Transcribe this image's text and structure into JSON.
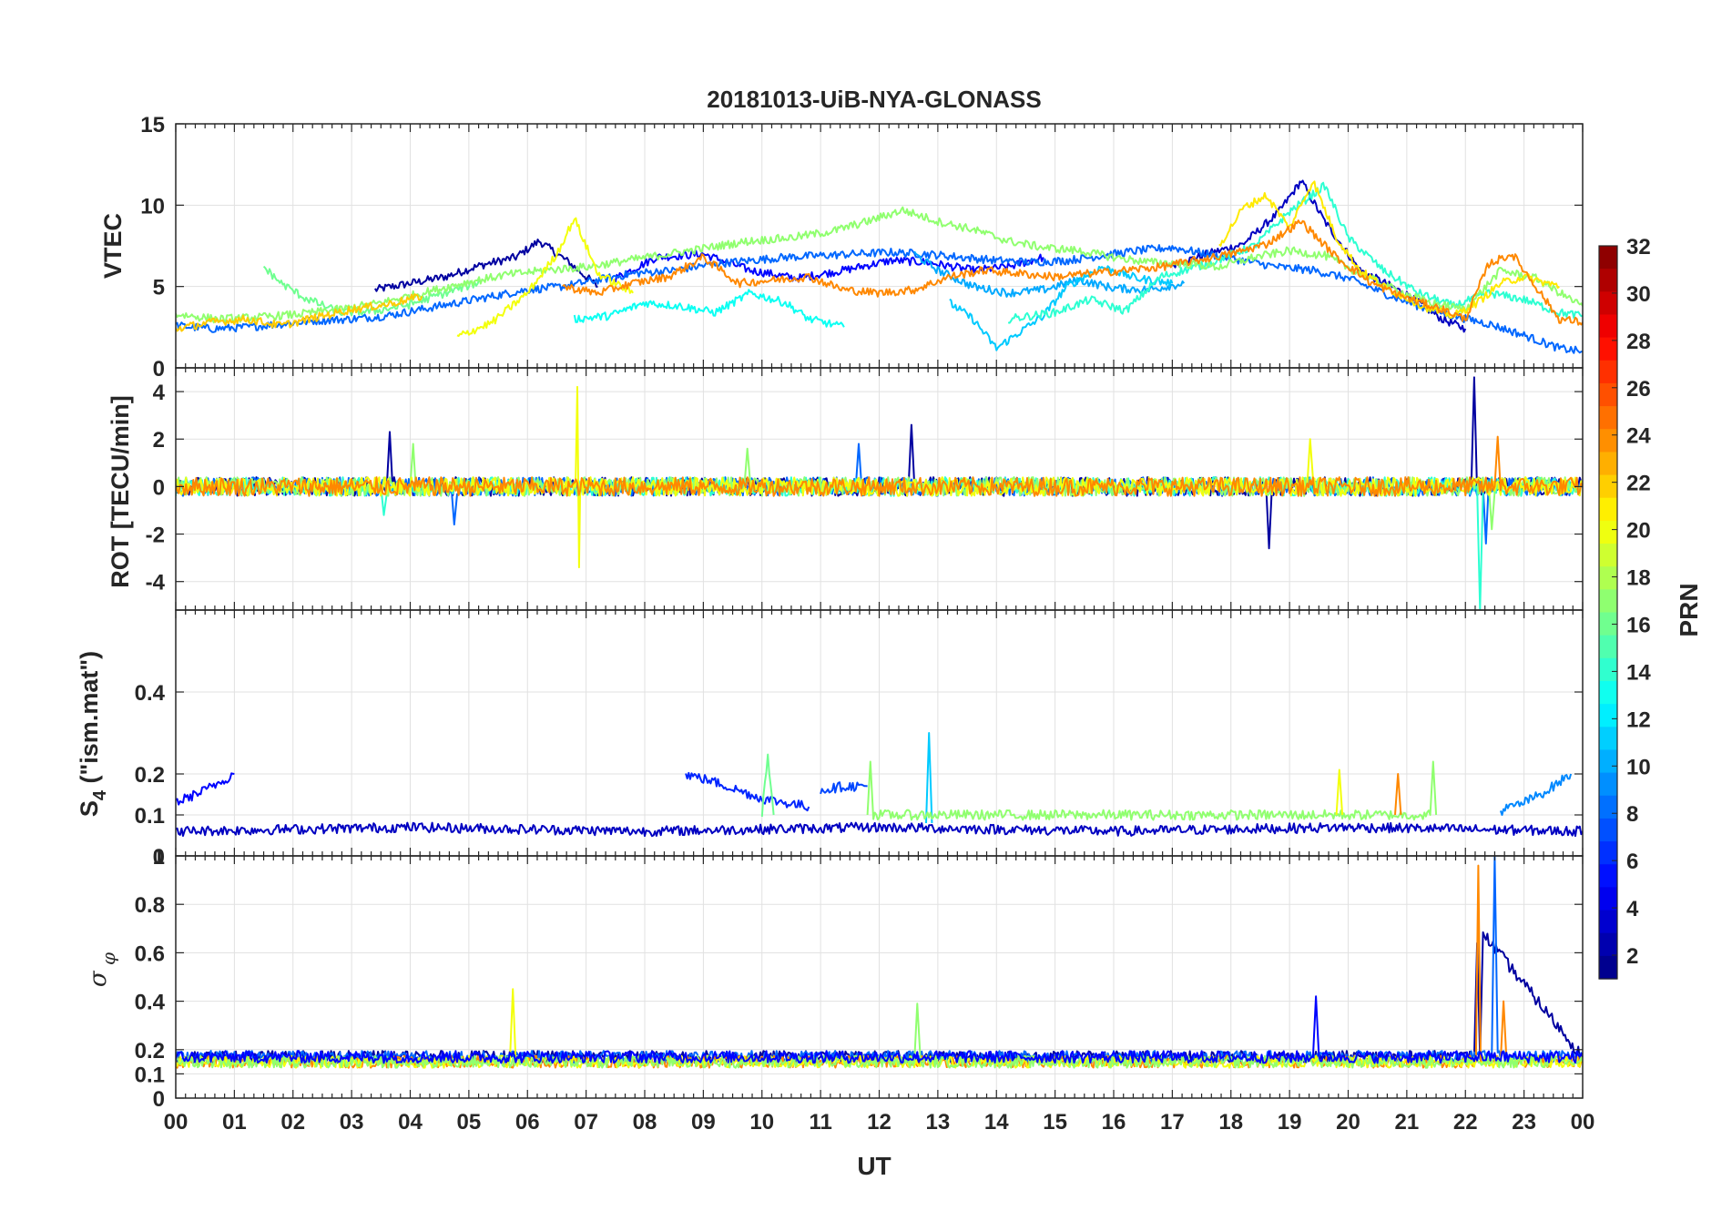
{
  "chart_data": [
    {
      "type": "line",
      "title": "20181013-UiB-NYA-GLONASS",
      "panel": "VTEC",
      "ylabel": "VTEC",
      "xlabel": "UT",
      "xlim": [
        0,
        24
      ],
      "ylim": [
        0,
        15
      ],
      "yticks": [
        0,
        5,
        10,
        15
      ],
      "grid": true,
      "series": [
        {
          "name": "PRN 2",
          "prn": 2,
          "x": [
            3.4,
            4.0,
            4.6,
            5.2,
            5.8,
            6.2,
            6.7,
            7.2
          ],
          "y": [
            4.8,
            5.2,
            5.6,
            6.3,
            6.8,
            7.8,
            6.5,
            5.0
          ]
        },
        {
          "name": "PRN 3",
          "prn": 3,
          "x": [
            17.0,
            17.6,
            18.2,
            18.8,
            19.2,
            19.6,
            20.2,
            21.0,
            21.6,
            22.0
          ],
          "y": [
            6.3,
            7.0,
            7.6,
            9.5,
            11.5,
            9.0,
            6.0,
            4.5,
            3.0,
            2.4
          ]
        },
        {
          "name": "PRN 5",
          "prn": 5,
          "x": [
            7.5,
            8.2,
            9.0,
            9.8,
            10.6,
            11.4,
            12.2,
            12.8,
            13.6,
            14.2,
            14.8
          ],
          "y": [
            5.5,
            6.8,
            7.0,
            6.0,
            5.5,
            6.0,
            6.6,
            6.5,
            6.0,
            6.2,
            6.8
          ]
        },
        {
          "name": "PRN 8",
          "prn": 8,
          "x": [
            0.0,
            0.6,
            1.2,
            1.8,
            2.4,
            3.0,
            3.6,
            4.2,
            4.8,
            5.4,
            6.0,
            6.6,
            7.2,
            7.8,
            8.5,
            9.2,
            9.8,
            10.4,
            11.0,
            11.6,
            12.2,
            12.8,
            13.4,
            14.0,
            14.6,
            15.2,
            15.8,
            16.4,
            17.0,
            17.6,
            18.2,
            18.8,
            19.4,
            20.0,
            20.6,
            21.2,
            21.8,
            22.4,
            23.0,
            23.6,
            24.0
          ],
          "y": [
            2.6,
            2.4,
            2.5,
            2.7,
            2.9,
            3.0,
            3.2,
            3.6,
            4.0,
            4.4,
            4.8,
            5.0,
            5.4,
            5.8,
            6.0,
            6.4,
            6.6,
            6.8,
            6.9,
            7.0,
            7.1,
            7.0,
            6.8,
            6.6,
            6.5,
            6.6,
            6.9,
            7.2,
            7.4,
            7.0,
            6.6,
            6.2,
            6.0,
            5.5,
            4.6,
            3.8,
            3.2,
            2.7,
            2.0,
            1.2,
            1.0
          ]
        },
        {
          "name": "PRN 10",
          "prn": 10,
          "x": [
            12.6,
            13.0,
            13.6,
            14.2,
            14.8,
            15.4,
            16.0,
            16.6,
            17.2
          ],
          "y": [
            7.0,
            6.0,
            5.0,
            4.6,
            4.8,
            5.4,
            4.9,
            4.8,
            5.2
          ]
        },
        {
          "name": "PRN 11",
          "prn": 11,
          "x": [
            13.2,
            13.6,
            14.0,
            14.4,
            14.8,
            15.2,
            15.8,
            16.4,
            17.0
          ],
          "y": [
            4.0,
            3.0,
            1.2,
            2.2,
            3.2,
            5.0,
            6.2,
            5.5,
            5.2
          ]
        },
        {
          "name": "PRN 13",
          "prn": 13,
          "x": [
            6.8,
            7.4,
            8.0,
            8.6,
            9.2,
            9.8,
            10.4,
            10.8,
            11.4
          ],
          "y": [
            3.0,
            3.2,
            4.0,
            3.8,
            3.4,
            4.6,
            4.0,
            3.0,
            2.5
          ]
        },
        {
          "name": "PRN 14",
          "prn": 14,
          "x": [
            14.2,
            15.0,
            15.6,
            16.2,
            16.8,
            17.6,
            18.4,
            19.0,
            19.6,
            20.0,
            20.6,
            21.2,
            21.8,
            22.4,
            23.0,
            23.6,
            24.0
          ],
          "y": [
            3.0,
            3.4,
            4.2,
            3.5,
            5.6,
            6.4,
            7.5,
            9.6,
            11.2,
            8.0,
            6.0,
            4.6,
            3.8,
            4.6,
            4.2,
            3.4,
            3.2
          ]
        },
        {
          "name": "PRN 16",
          "prn": 16,
          "x": [
            1.5,
            1.8,
            2.2,
            2.8,
            3.4,
            4.0,
            4.6,
            5.2
          ],
          "y": [
            6.2,
            5.2,
            4.3,
            3.4,
            3.5,
            3.9,
            4.6,
            5.3
          ]
        },
        {
          "name": "PRN 17",
          "prn": 17,
          "x": [
            0.0,
            0.7,
            1.4,
            2.1,
            2.8,
            3.5,
            4.2,
            4.9,
            5.6,
            6.3,
            7.0,
            7.7,
            8.4,
            9.1,
            9.8,
            10.5,
            11.2,
            11.8,
            12.4,
            13.0,
            13.6,
            14.2,
            14.8,
            15.4,
            16.0,
            16.6,
            17.2,
            17.8,
            18.4,
            19.0,
            19.6,
            20.2,
            20.8,
            21.4,
            22.0,
            22.6,
            23.2,
            23.8,
            24.0
          ],
          "y": [
            3.3,
            3.0,
            3.1,
            3.3,
            3.6,
            4.0,
            4.6,
            5.2,
            5.7,
            6.0,
            6.2,
            6.6,
            7.0,
            7.4,
            7.8,
            8.0,
            8.4,
            9.0,
            9.7,
            9.0,
            8.5,
            7.8,
            7.4,
            7.2,
            6.8,
            6.5,
            6.4,
            6.2,
            6.8,
            7.2,
            6.9,
            5.8,
            4.8,
            4.0,
            3.6,
            6.0,
            5.5,
            4.2,
            3.8
          ]
        },
        {
          "name": "PRN 20",
          "prn": 20,
          "x": [
            4.8,
            5.4,
            6.0,
            6.5,
            6.8,
            7.2,
            7.8
          ],
          "y": [
            1.9,
            2.8,
            4.6,
            7.0,
            9.2,
            5.8,
            4.6
          ]
        },
        {
          "name": "PRN 21",
          "prn": 21,
          "x": [
            17.8,
            18.2,
            18.6,
            19.0,
            19.4,
            19.8,
            20.2,
            20.6,
            21.0,
            21.4,
            21.8,
            22.2,
            22.6,
            23.0,
            23.6
          ],
          "y": [
            7.5,
            9.8,
            10.6,
            8.6,
            11.5,
            8.0,
            6.0,
            5.0,
            4.3,
            3.6,
            3.2,
            4.0,
            5.2,
            5.6,
            5.0
          ]
        },
        {
          "name": "PRN 22",
          "prn": 22,
          "x": [
            0.0,
            0.6,
            1.2,
            1.8,
            2.4,
            3.0,
            3.6,
            4.2
          ],
          "y": [
            2.4,
            2.8,
            3.0,
            2.6,
            3.1,
            3.6,
            3.9,
            4.4
          ]
        },
        {
          "name": "PRN 24",
          "prn": 24,
          "x": [
            6.6,
            7.2,
            7.8,
            8.4,
            9.0,
            9.6,
            10.2,
            10.8,
            11.4,
            12.0,
            12.6,
            13.2,
            13.8,
            14.4,
            15.0,
            15.6,
            16.2,
            16.8,
            17.4,
            18.0,
            18.6,
            19.2,
            19.8,
            20.4,
            21.0,
            21.6,
            22.0,
            22.4,
            22.8,
            23.2,
            23.6,
            24.0
          ],
          "y": [
            5.0,
            4.6,
            5.2,
            5.6,
            6.8,
            5.2,
            5.4,
            5.6,
            4.8,
            4.6,
            4.8,
            5.6,
            6.0,
            5.8,
            5.6,
            5.8,
            6.0,
            6.2,
            6.6,
            7.0,
            7.6,
            9.0,
            6.8,
            5.2,
            4.3,
            3.6,
            3.0,
            6.4,
            7.0,
            5.0,
            3.0,
            2.8
          ]
        }
      ]
    },
    {
      "type": "line",
      "panel": "ROT",
      "ylabel": "ROT [TECU/min]",
      "xlim": [
        0,
        24
      ],
      "ylim": [
        -5.2,
        5
      ],
      "yticks": [
        -4,
        -2,
        0,
        2,
        4
      ],
      "grid": true,
      "series": [
        {
          "name": "PRN 2",
          "prn": 2,
          "x": [
            0,
            3.6,
            3.65,
            3.7,
            6.0,
            7.0,
            12.5,
            12.55,
            12.6,
            18.6,
            18.65,
            18.7,
            22.1,
            22.15,
            22.2,
            24
          ],
          "y": [
            0,
            0,
            2.3,
            0,
            0,
            0,
            0,
            2.6,
            0,
            0,
            -2.6,
            0,
            0,
            4.6,
            0,
            0
          ]
        },
        {
          "name": "PRN 8",
          "prn": 8,
          "x": [
            0,
            4.7,
            4.75,
            4.8,
            11.6,
            11.65,
            11.7,
            22.3,
            22.35,
            22.4,
            24
          ],
          "y": [
            0,
            0,
            -1.6,
            0,
            0,
            1.8,
            0,
            0,
            -2.4,
            0,
            0
          ]
        },
        {
          "name": "PRN 14",
          "prn": 14,
          "x": [
            0,
            3.5,
            3.55,
            3.6,
            22.2,
            22.25,
            22.3,
            24
          ],
          "y": [
            0,
            0,
            -1.2,
            0,
            0,
            -5.2,
            0,
            0
          ]
        },
        {
          "name": "PRN 17",
          "prn": 17,
          "x": [
            0,
            4.0,
            4.05,
            4.1,
            9.7,
            9.75,
            9.8,
            22.4,
            22.45,
            22.5,
            24
          ],
          "y": [
            0,
            0,
            1.8,
            0,
            0,
            1.6,
            0,
            0,
            -1.8,
            0,
            0
          ]
        },
        {
          "name": "PRN 20",
          "prn": 20,
          "x": [
            0,
            6.82,
            6.85,
            6.88,
            6.9,
            19.3,
            19.35,
            19.4,
            24
          ],
          "y": [
            0,
            0,
            4.2,
            -3.4,
            0,
            0,
            2.0,
            0,
            0
          ]
        },
        {
          "name": "PRN 24",
          "prn": 24,
          "x": [
            0,
            22.5,
            22.55,
            22.6,
            24
          ],
          "y": [
            0,
            0,
            2.1,
            0,
            0
          ]
        }
      ]
    },
    {
      "type": "line",
      "panel": "S4",
      "ylabel": "S4 (\"ism.mat\")",
      "xlim": [
        0,
        24
      ],
      "ylim": [
        0,
        0.6
      ],
      "yticks": [
        0,
        0.1,
        0.2,
        0.4
      ],
      "grid": true,
      "series": [
        {
          "name": "PRN 5",
          "prn": 5,
          "x": [
            0,
            0.5,
            1.0
          ],
          "y": [
            0.13,
            0.16,
            0.2
          ]
        },
        {
          "name": "PRN 6",
          "prn": 6,
          "x": [
            8.7,
            9.2,
            9.6,
            10.0,
            10.4,
            10.8
          ],
          "y": [
            0.2,
            0.18,
            0.16,
            0.14,
            0.13,
            0.12
          ]
        },
        {
          "name": "PRN 7",
          "prn": 7,
          "x": [
            11.0,
            11.4,
            11.8
          ],
          "y": [
            0.16,
            0.17,
            0.17
          ]
        },
        {
          "name": "PRN 9",
          "prn": 9,
          "x": [
            22.6,
            23.0,
            23.4,
            23.8
          ],
          "y": [
            0.11,
            0.13,
            0.16,
            0.2
          ]
        },
        {
          "name": "PRN 11",
          "prn": 11,
          "x": [
            12.8,
            12.85,
            12.9
          ],
          "y": [
            0.08,
            0.3,
            0.08
          ]
        },
        {
          "name": "PRN 16",
          "prn": 16,
          "x": [
            10.0,
            10.1,
            10.2
          ],
          "y": [
            0.1,
            0.25,
            0.1
          ]
        },
        {
          "name": "PRN 17",
          "prn": 17,
          "x": [
            11.8,
            11.85,
            11.9,
            21.4,
            21.45,
            21.5
          ],
          "y": [
            0.1,
            0.23,
            0.1,
            0.1,
            0.23,
            0.1
          ]
        },
        {
          "name": "PRN 20",
          "prn": 20,
          "x": [
            19.8,
            19.85,
            19.9
          ],
          "y": [
            0.1,
            0.21,
            0.1
          ]
        },
        {
          "name": "PRN 24",
          "prn": 24,
          "x": [
            20.8,
            20.85,
            20.9
          ],
          "y": [
            0.1,
            0.2,
            0.1
          ]
        },
        {
          "name": "PRN 3",
          "prn": 3,
          "x": [
            0,
            4,
            8,
            12,
            16,
            20,
            24
          ],
          "y": [
            0.06,
            0.07,
            0.06,
            0.07,
            0.06,
            0.07,
            0.06
          ]
        }
      ]
    },
    {
      "type": "line",
      "panel": "sigma_phi",
      "ylabel": "σφ",
      "xlim": [
        0,
        24
      ],
      "ylim": [
        0,
        1
      ],
      "yticks": [
        0,
        0.1,
        0.2,
        0.4,
        0.6,
        0.8,
        1
      ],
      "xticks": [
        "00",
        "01",
        "02",
        "03",
        "04",
        "05",
        "06",
        "07",
        "08",
        "09",
        "10",
        "11",
        "12",
        "13",
        "14",
        "15",
        "16",
        "17",
        "18",
        "19",
        "20",
        "21",
        "22",
        "23",
        "00"
      ],
      "grid": true,
      "series": [
        {
          "name": "PRN 2",
          "prn": 2,
          "x": [
            0,
            22.15,
            22.2,
            22.25,
            22.3,
            24
          ],
          "y": [
            0.17,
            0.17,
            0.64,
            0.17,
            0.68,
            0.17
          ]
        },
        {
          "name": "PRN 8",
          "prn": 8,
          "x": [
            0,
            22.45,
            22.5,
            22.55,
            24
          ],
          "y": [
            0.17,
            0.17,
            1.0,
            0.17,
            0.17
          ]
        },
        {
          "name": "PRN 24",
          "prn": 24,
          "x": [
            0,
            22.18,
            22.22,
            22.26,
            22.6,
            22.65,
            22.7,
            24
          ],
          "y": [
            0.15,
            0.15,
            0.96,
            0.15,
            0.15,
            0.4,
            0.15,
            0.15
          ]
        },
        {
          "name": "PRN 20",
          "prn": 20,
          "x": [
            0,
            5.7,
            5.75,
            5.8,
            24
          ],
          "y": [
            0.15,
            0.15,
            0.45,
            0.15,
            0.15
          ]
        },
        {
          "name": "PRN 17",
          "prn": 17,
          "x": [
            0,
            12.6,
            12.65,
            12.7,
            24
          ],
          "y": [
            0.15,
            0.15,
            0.39,
            0.15,
            0.15
          ]
        },
        {
          "name": "PRN 5",
          "prn": 5,
          "x": [
            0,
            19.4,
            19.45,
            19.5,
            24
          ],
          "y": [
            0.17,
            0.17,
            0.42,
            0.17,
            0.17
          ]
        }
      ]
    }
  ],
  "colorbar": {
    "label": "PRN",
    "ticks": [
      "2",
      "4",
      "6",
      "8",
      "10",
      "12",
      "14",
      "16",
      "18",
      "20",
      "22",
      "24",
      "26",
      "28",
      "30",
      "32"
    ],
    "range": [
      1,
      32
    ]
  }
}
